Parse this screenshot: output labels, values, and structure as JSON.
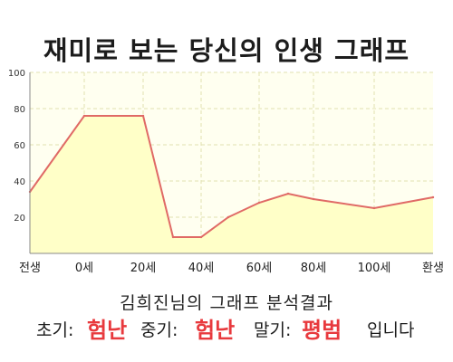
{
  "title": "재미로 보는 당신의 인생 그래프",
  "chart_data": {
    "type": "area",
    "x_categories": [
      "전생",
      "0세",
      "20세",
      "40세",
      "60세",
      "80세",
      "100세",
      "환생"
    ],
    "points": [
      {
        "x": "전생",
        "y": 34
      },
      {
        "x": "0세",
        "y": 76
      },
      {
        "x": "20세",
        "y": 76
      },
      {
        "x": "30세",
        "y": 9
      },
      {
        "x": "40세",
        "y": 9
      },
      {
        "x": "50세",
        "y": 20
      },
      {
        "x": "60세",
        "y": 28
      },
      {
        "x": "70세",
        "y": 33
      },
      {
        "x": "80세",
        "y": 30
      },
      {
        "x": "100세",
        "y": 25
      },
      {
        "x": "환생",
        "y": 31
      }
    ],
    "y_ticks": [
      20,
      40,
      60,
      80,
      100
    ],
    "ylim": [
      0,
      100
    ],
    "grid": true,
    "colors": {
      "line": "#e06a66",
      "fill": "#ffffc8",
      "plot_bg": "#fffff0",
      "grid": "#e0e0b0"
    }
  },
  "result": {
    "caption": "김희진님의 그래프 분석결과",
    "early_label": "초기:",
    "early_value": "험난",
    "mid_label": "중기:",
    "mid_value": "험난",
    "late_label": "말기:",
    "late_value": "평범",
    "suffix": "입니다"
  }
}
